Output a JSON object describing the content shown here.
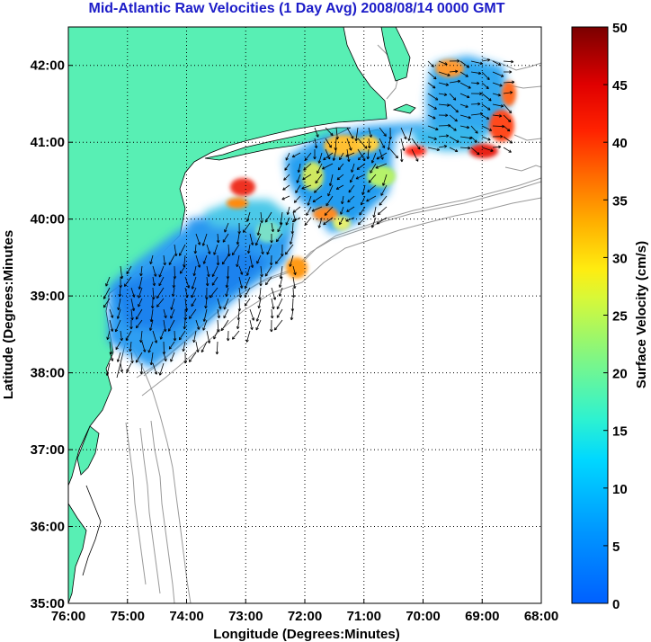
{
  "title": "Mid-Atlantic Raw Velocities (1 Day Avg) 2008/08/14 0000 GMT",
  "map": {
    "xlabel": "Longitude (Degrees:Minutes)",
    "ylabel": "Latitude (Degrees:Minutes",
    "x_ticks": [
      "76:00",
      "75:00",
      "74:00",
      "73:00",
      "72:00",
      "71:00",
      "70:00",
      "69:00",
      "68:00"
    ],
    "y_ticks": [
      "42:00",
      "41:00",
      "40:00",
      "39:00",
      "38:00",
      "37:00",
      "36:00",
      "35:00"
    ],
    "lon_range": [
      -76,
      -68
    ],
    "lat_range": [
      35,
      42.5
    ],
    "land_color": "#58efb4",
    "grid": "dotted"
  },
  "colorbar": {
    "label": "Surface Velocity (cm/s)",
    "ticks": [
      "0",
      "5",
      "10",
      "15",
      "20",
      "25",
      "30",
      "35",
      "40",
      "45",
      "50"
    ],
    "min": 0,
    "max": 50,
    "colormap": "jet"
  }
}
